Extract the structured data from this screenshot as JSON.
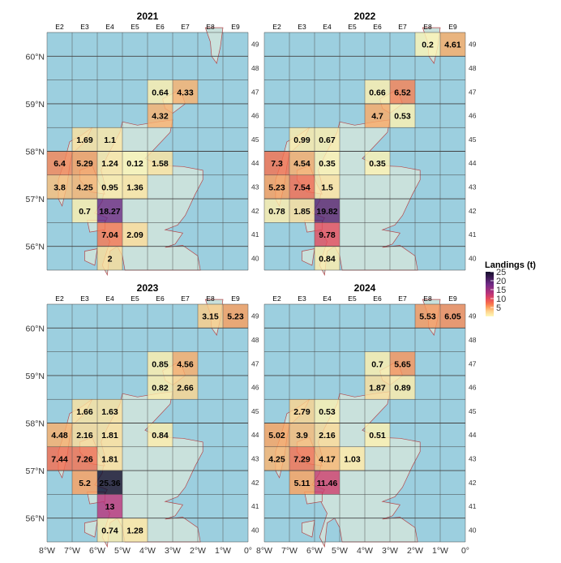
{
  "chart_data": {
    "type": "heatmap",
    "legend": {
      "title": "Landings (t)",
      "ticks": [
        5,
        10,
        15,
        20,
        25
      ],
      "range": [
        0,
        25
      ],
      "placement": "right",
      "colormap": "magma-reversed"
    },
    "columns": [
      "E2",
      "E3",
      "E4",
      "E5",
      "E6",
      "E7",
      "E8",
      "E9"
    ],
    "rows": [
      40,
      41,
      42,
      43,
      44,
      45,
      46,
      47,
      48,
      49
    ],
    "lon_ticks": [
      "8°W",
      "7°W",
      "6°W",
      "5°W",
      "4°W",
      "3°W",
      "2°W",
      "1°W",
      "0°"
    ],
    "lat_ticks": [
      "60°N",
      "59°N",
      "58°N",
      "57°N",
      "56°N"
    ],
    "colors": {
      "sea": "#9ccfdf",
      "land": "#c9e1dc",
      "coast": "#b5474a"
    },
    "panels": [
      {
        "title": "2021",
        "cells": [
          [
            "E6",
            47,
            0.64
          ],
          [
            "E7",
            47,
            4.33
          ],
          [
            "E6",
            46,
            4.32
          ],
          [
            "E3",
            45,
            1.69
          ],
          [
            "E4",
            45,
            1.1
          ],
          [
            "E2",
            44,
            6.4
          ],
          [
            "E3",
            44,
            5.29
          ],
          [
            "E4",
            44,
            1.24
          ],
          [
            "E5",
            44,
            0.12
          ],
          [
            "E6",
            44,
            1.58
          ],
          [
            "E2",
            43,
            3.8
          ],
          [
            "E3",
            43,
            4.25
          ],
          [
            "E4",
            43,
            0.95
          ],
          [
            "E5",
            43,
            1.36
          ],
          [
            "E3",
            42,
            0.7
          ],
          [
            "E4",
            42,
            18.27
          ],
          [
            "E4",
            41,
            7.04
          ],
          [
            "E5",
            41,
            2.09
          ],
          [
            "E4",
            40,
            2
          ]
        ]
      },
      {
        "title": "2022",
        "cells": [
          [
            "E8",
            49,
            0.2
          ],
          [
            "E9",
            49,
            4.61
          ],
          [
            "E6",
            47,
            0.66
          ],
          [
            "E7",
            47,
            6.52
          ],
          [
            "E6",
            46,
            4.7
          ],
          [
            "E7",
            46,
            0.53
          ],
          [
            "E3",
            45,
            0.99
          ],
          [
            "E4",
            45,
            0.67
          ],
          [
            "E2",
            44,
            7.3
          ],
          [
            "E3",
            44,
            4.54
          ],
          [
            "E4",
            44,
            0.35
          ],
          [
            "E6",
            44,
            0.35
          ],
          [
            "E2",
            43,
            5.23
          ],
          [
            "E3",
            43,
            7.54
          ],
          [
            "E4",
            43,
            1.5
          ],
          [
            "E2",
            42,
            0.78
          ],
          [
            "E3",
            42,
            1.85
          ],
          [
            "E4",
            42,
            19.82
          ],
          [
            "E4",
            41,
            9.78
          ],
          [
            "E4",
            40,
            0.84
          ]
        ]
      },
      {
        "title": "2023",
        "cells": [
          [
            "E8",
            49,
            3.15
          ],
          [
            "E9",
            49,
            5.23
          ],
          [
            "E6",
            47,
            0.85
          ],
          [
            "E7",
            47,
            4.56
          ],
          [
            "E6",
            46,
            0.82
          ],
          [
            "E7",
            46,
            2.66
          ],
          [
            "E3",
            45,
            1.66
          ],
          [
            "E4",
            45,
            1.63
          ],
          [
            "E2",
            44,
            4.48
          ],
          [
            "E3",
            44,
            2.16
          ],
          [
            "E4",
            44,
            1.81
          ],
          [
            "E6",
            44,
            0.84
          ],
          [
            "E2",
            43,
            7.44
          ],
          [
            "E3",
            43,
            7.26
          ],
          [
            "E4",
            43,
            1.81
          ],
          [
            "E3",
            42,
            5.2
          ],
          [
            "E4",
            42,
            25.36
          ],
          [
            "E4",
            41,
            13
          ],
          [
            "E4",
            40,
            0.74
          ],
          [
            "E5",
            40,
            1.28
          ]
        ]
      },
      {
        "title": "2024",
        "cells": [
          [
            "E8",
            49,
            5.53
          ],
          [
            "E9",
            49,
            6.05
          ],
          [
            "E6",
            47,
            0.7
          ],
          [
            "E7",
            47,
            5.65
          ],
          [
            "E6",
            46,
            1.87
          ],
          [
            "E7",
            46,
            0.89
          ],
          [
            "E3",
            45,
            2.79
          ],
          [
            "E4",
            45,
            0.53
          ],
          [
            "E2",
            44,
            5.02
          ],
          [
            "E3",
            44,
            3.9
          ],
          [
            "E4",
            44,
            2.16
          ],
          [
            "E6",
            44,
            0.51
          ],
          [
            "E2",
            43,
            4.25
          ],
          [
            "E3",
            43,
            7.29
          ],
          [
            "E4",
            43,
            4.17
          ],
          [
            "E5",
            43,
            1.03
          ],
          [
            "E3",
            42,
            5.11
          ],
          [
            "E4",
            42,
            11.46
          ]
        ]
      }
    ]
  }
}
